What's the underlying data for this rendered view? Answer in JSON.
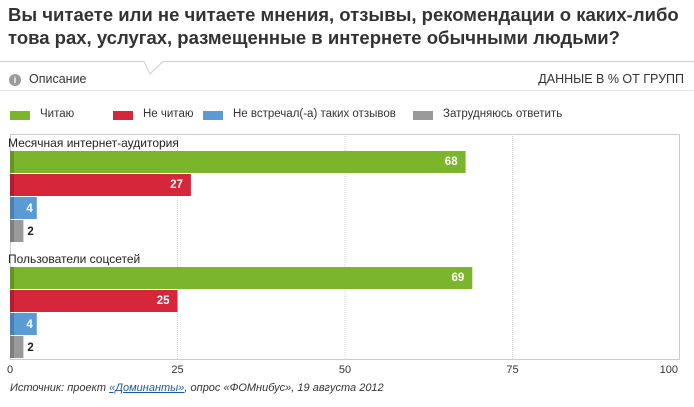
{
  "header": {
    "title": "Вы читаете или не читаете мнения, отзывы, рекомендации о каких-либо това рах, услугах, размещенные в интернете обычными людьми?",
    "description_label": "Описание",
    "info_icon": "info-icon",
    "units_label": "ДАННЫЕ В % ОТ ГРУПП"
  },
  "footer": {
    "source_prefix": "Источник: проект ",
    "source_link": "«Доминанты»",
    "source_suffix": ", опрос «ФОМнибус», 19 августа 2012"
  },
  "chart_data": {
    "type": "bar",
    "orientation": "horizontal",
    "xlim": [
      0,
      100
    ],
    "x_ticks": [
      "0",
      "25",
      "50",
      "75",
      "100"
    ],
    "grid": true,
    "legend_position": "top",
    "groups": [
      {
        "label": "Месячная интернет-аудитория",
        "bars": [
          {
            "series": "Читаю",
            "value": 68,
            "label": "68",
            "color": "#7bb52c"
          },
          {
            "series": "Не читаю",
            "value": 27,
            "label": "27",
            "color": "#d6263a"
          },
          {
            "series": "Не встречал(-а) таких отзывов",
            "value": 4,
            "label": "4",
            "color": "#5b9bd5"
          },
          {
            "series": "Затрудняюсь ответить",
            "value": 2,
            "label": "2",
            "color": "#9a9a9a"
          }
        ]
      },
      {
        "label": "Пользователи соцсетей",
        "bars": [
          {
            "series": "Читаю",
            "value": 69,
            "label": "69",
            "color": "#7bb52c"
          },
          {
            "series": "Не читаю",
            "value": 25,
            "label": "25",
            "color": "#d6263a"
          },
          {
            "series": "Не встречал(-а) таких отзывов",
            "value": 4,
            "label": "4",
            "color": "#5b9bd5"
          },
          {
            "series": "Затрудняюсь ответить",
            "value": 2,
            "label": "2",
            "color": "#9a9a9a"
          }
        ]
      }
    ],
    "legend": [
      {
        "name": "Читаю",
        "color": "#7bb52c"
      },
      {
        "name": "Не читаю",
        "color": "#d6263a"
      },
      {
        "name": "Не встречал(-а) таких отзывов",
        "color": "#5b9bd5"
      },
      {
        "name": "Затрудняюсь ответить",
        "color": "#9a9a9a"
      }
    ]
  }
}
